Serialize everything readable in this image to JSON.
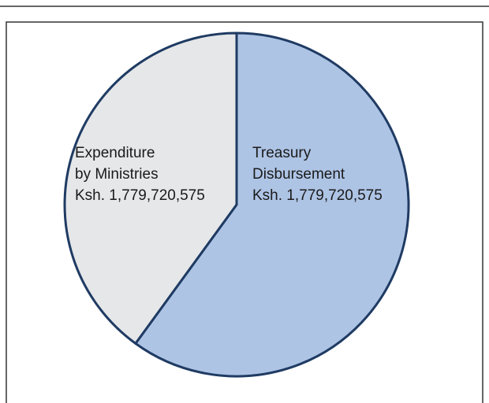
{
  "chart_data": {
    "type": "pie",
    "categories": [
      [
        "Treasury",
        "Disbursement",
        "Ksh. 1,779,720,575"
      ],
      [
        "Expenditure",
        "by Ministries",
        "Ksh. 1,779,720,575"
      ]
    ],
    "values": [
      60,
      40
    ],
    "colors": [
      "#aec4e5",
      "#e6e7e9"
    ],
    "edge_color": "#1f3b63"
  }
}
